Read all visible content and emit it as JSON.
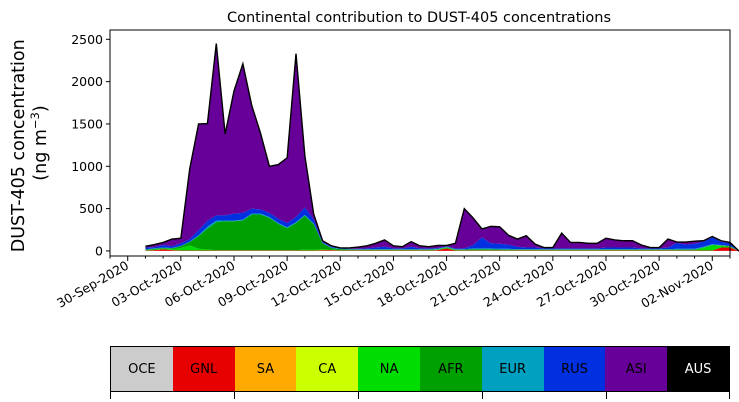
{
  "chart_data": {
    "type": "area",
    "title": "Continental contribution to DUST-405 concentrations",
    "ylabel_line1": "DUST-405 concentration",
    "ylabel_line2": "(ng m",
    "ylabel_sup": "−3",
    "ylabel_close": ")",
    "xlabel": "",
    "ylim": [
      -60,
      2610
    ],
    "y_ticks": [
      0,
      500,
      1000,
      1500,
      2000,
      2500
    ],
    "x_tick_labels": [
      "30-Sep-2020",
      "03-Oct-2020",
      "06-Oct-2020",
      "09-Oct-2020",
      "12-Oct-2020",
      "15-Oct-2020",
      "18-Oct-2020",
      "21-Oct-2020",
      "24-Oct-2020",
      "27-Oct-2020",
      "30-Oct-2020",
      "02-Nov-2020"
    ],
    "x_tick_days": [
      0,
      3,
      6,
      9,
      12,
      15,
      18,
      21,
      24,
      27,
      30,
      33
    ],
    "xlim_days": [
      -1,
      34
    ],
    "x_day0": "30-Sep-2020",
    "x_days": [
      1,
      1.5,
      2,
      2.5,
      3,
      3.5,
      4,
      4.5,
      5,
      5.5,
      6,
      6.5,
      7,
      7.5,
      8,
      8.5,
      9,
      9.5,
      10,
      10.5,
      11,
      11.5,
      12,
      12.5,
      13,
      13.5,
      14,
      14.5,
      15,
      15.5,
      16,
      16.5,
      17,
      17.5,
      18,
      18.5,
      19,
      19.5,
      20,
      20.5,
      21,
      21.5,
      22,
      22.5,
      23,
      23.5,
      24,
      24.5,
      25,
      25.5,
      26,
      26.5,
      27,
      27.5,
      28,
      28.5,
      29,
      29.5,
      30,
      30.5,
      31,
      31.5,
      32,
      32.5,
      33,
      33.5,
      34,
      34.5,
      35
    ],
    "stack_order": [
      "OCE",
      "GNL",
      "SA",
      "CA",
      "NA",
      "AFR",
      "EUR",
      "RUS",
      "ASI",
      "AUS"
    ],
    "series": [
      {
        "name": "OCE",
        "color": "#cccccc",
        "values": [
          0,
          0,
          0,
          0,
          0,
          0,
          0,
          0,
          0,
          0,
          0,
          0,
          0,
          0,
          0,
          0,
          0,
          0,
          0,
          0,
          0,
          0,
          0,
          0,
          0,
          0,
          0,
          0,
          0,
          0,
          0,
          0,
          0,
          0,
          0,
          0,
          0,
          0,
          0,
          0,
          0,
          0,
          0,
          0,
          0,
          0,
          0,
          0,
          0,
          0,
          0,
          0,
          0,
          0,
          0,
          0,
          0,
          0,
          0,
          0,
          0,
          0,
          0,
          0,
          0,
          0,
          0,
          0,
          0
        ]
      },
      {
        "name": "GNL",
        "color": "#e60000",
        "values": [
          5,
          10,
          20,
          10,
          5,
          5,
          5,
          5,
          5,
          5,
          5,
          5,
          5,
          5,
          5,
          5,
          5,
          5,
          5,
          5,
          10,
          10,
          5,
          5,
          5,
          5,
          5,
          5,
          5,
          5,
          5,
          5,
          5,
          10,
          30,
          5,
          5,
          5,
          5,
          5,
          5,
          5,
          5,
          5,
          5,
          5,
          5,
          5,
          5,
          5,
          5,
          5,
          5,
          5,
          5,
          5,
          5,
          5,
          5,
          5,
          5,
          5,
          5,
          5,
          5,
          40,
          40,
          0,
          0
        ]
      },
      {
        "name": "SA",
        "color": "#ffaa00",
        "values": [
          0,
          0,
          0,
          0,
          0,
          0,
          0,
          0,
          0,
          0,
          0,
          0,
          0,
          0,
          0,
          0,
          0,
          0,
          0,
          0,
          0,
          0,
          0,
          0,
          0,
          0,
          0,
          0,
          0,
          0,
          0,
          0,
          0,
          0,
          0,
          0,
          0,
          0,
          0,
          0,
          0,
          0,
          0,
          0,
          0,
          0,
          0,
          0,
          0,
          0,
          0,
          0,
          0,
          0,
          0,
          0,
          0,
          0,
          0,
          0,
          0,
          0,
          0,
          0,
          0,
          0,
          0,
          0,
          0
        ]
      },
      {
        "name": "CA",
        "color": "#ccff00",
        "values": [
          0,
          0,
          0,
          0,
          0,
          0,
          0,
          0,
          0,
          0,
          0,
          0,
          0,
          0,
          0,
          0,
          0,
          0,
          0,
          0,
          0,
          0,
          0,
          0,
          0,
          0,
          0,
          0,
          0,
          0,
          0,
          0,
          0,
          0,
          0,
          0,
          0,
          0,
          0,
          0,
          0,
          0,
          0,
          0,
          0,
          0,
          0,
          0,
          0,
          0,
          0,
          0,
          0,
          0,
          0,
          0,
          0,
          0,
          0,
          0,
          0,
          0,
          0,
          0,
          0,
          0,
          0,
          0,
          0
        ]
      },
      {
        "name": "NA",
        "color": "#00dd00",
        "values": [
          5,
          5,
          5,
          10,
          30,
          60,
          20,
          10,
          5,
          5,
          5,
          5,
          5,
          5,
          5,
          5,
          5,
          5,
          10,
          10,
          10,
          5,
          5,
          5,
          5,
          5,
          5,
          5,
          5,
          5,
          5,
          5,
          5,
          5,
          10,
          5,
          5,
          5,
          5,
          5,
          5,
          5,
          5,
          5,
          5,
          5,
          5,
          5,
          5,
          5,
          5,
          5,
          5,
          5,
          5,
          5,
          5,
          5,
          5,
          5,
          5,
          5,
          5,
          30,
          60,
          20,
          10,
          0,
          0
        ]
      },
      {
        "name": "AFR",
        "color": "#00a000",
        "values": [
          5,
          10,
          10,
          10,
          20,
          40,
          150,
          250,
          330,
          340,
          340,
          350,
          420,
          420,
          380,
          310,
          260,
          320,
          400,
          300,
          70,
          20,
          10,
          5,
          5,
          5,
          5,
          5,
          5,
          5,
          5,
          5,
          5,
          5,
          5,
          5,
          5,
          10,
          10,
          10,
          5,
          5,
          5,
          5,
          5,
          5,
          5,
          5,
          5,
          5,
          5,
          5,
          5,
          5,
          5,
          5,
          5,
          5,
          5,
          5,
          5,
          5,
          5,
          5,
          5,
          5,
          5,
          0,
          0
        ]
      },
      {
        "name": "EUR",
        "color": "#00a0c0",
        "values": [
          5,
          5,
          5,
          5,
          5,
          5,
          10,
          20,
          20,
          10,
          10,
          10,
          10,
          10,
          10,
          10,
          10,
          10,
          10,
          10,
          5,
          5,
          5,
          5,
          5,
          5,
          5,
          5,
          5,
          5,
          5,
          5,
          5,
          5,
          5,
          5,
          5,
          10,
          10,
          10,
          10,
          10,
          5,
          5,
          5,
          5,
          5,
          5,
          5,
          5,
          5,
          5,
          5,
          5,
          5,
          5,
          5,
          5,
          5,
          5,
          10,
          10,
          10,
          10,
          10,
          5,
          5,
          0,
          0
        ]
      },
      {
        "name": "RUS",
        "color": "#0030e0",
        "values": [
          20,
          15,
          30,
          20,
          30,
          30,
          60,
          70,
          60,
          60,
          80,
          80,
          60,
          50,
          50,
          50,
          50,
          60,
          90,
          50,
          10,
          10,
          5,
          5,
          5,
          10,
          20,
          30,
          10,
          10,
          30,
          10,
          10,
          10,
          5,
          10,
          10,
          40,
          130,
          60,
          60,
          50,
          30,
          20,
          20,
          10,
          10,
          10,
          10,
          10,
          10,
          10,
          20,
          20,
          20,
          20,
          10,
          10,
          10,
          20,
          70,
          50,
          60,
          60,
          80,
          40,
          30,
          0,
          0
        ]
      },
      {
        "name": "ASI",
        "color": "#660099",
        "values": [
          15,
          30,
          30,
          85,
          60,
          830,
          1255,
          1150,
          2030,
          960,
          1450,
          1760,
          1220,
          900,
          550,
          640,
          770,
          1930,
          610,
          60,
          15,
          10,
          5,
          10,
          20,
          30,
          50,
          80,
          30,
          20,
          60,
          30,
          20,
          30,
          10,
          60,
          470,
          320,
          100,
          200,
          200,
          110,
          90,
          140,
          40,
          10,
          10,
          180,
          70,
          70,
          60,
          60,
          110,
          90,
          80,
          80,
          40,
          10,
          10,
          100,
          10,
          30,
          30,
          10,
          10,
          10,
          10,
          0,
          0
        ]
      },
      {
        "name": "AUS",
        "color": "#000000",
        "values": [
          0,
          0,
          0,
          0,
          0,
          0,
          0,
          0,
          0,
          0,
          0,
          0,
          0,
          0,
          0,
          0,
          0,
          0,
          0,
          0,
          0,
          0,
          0,
          0,
          0,
          0,
          0,
          0,
          0,
          0,
          0,
          0,
          0,
          0,
          0,
          0,
          0,
          0,
          0,
          0,
          0,
          0,
          0,
          0,
          0,
          0,
          0,
          0,
          0,
          0,
          0,
          0,
          0,
          0,
          0,
          0,
          0,
          0,
          0,
          0,
          0,
          0,
          0,
          0,
          0,
          0,
          0,
          0,
          0
        ]
      }
    ],
    "legend_position": "below",
    "legend": [
      {
        "label": "OCE",
        "color": "#cccccc",
        "text_color": "#000000"
      },
      {
        "label": "GNL",
        "color": "#e60000",
        "text_color": "#000000"
      },
      {
        "label": "SA",
        "color": "#ffaa00",
        "text_color": "#000000"
      },
      {
        "label": "CA",
        "color": "#ccff00",
        "text_color": "#000000"
      },
      {
        "label": "NA",
        "color": "#00dd00",
        "text_color": "#000000"
      },
      {
        "label": "AFR",
        "color": "#00a000",
        "text_color": "#000000"
      },
      {
        "label": "EUR",
        "color": "#00a0c0",
        "text_color": "#000000"
      },
      {
        "label": "RUS",
        "color": "#0030e0",
        "text_color": "#000000"
      },
      {
        "label": "ASI",
        "color": "#660099",
        "text_color": "#000000"
      },
      {
        "label": "AUS",
        "color": "#000000",
        "text_color": "#ffffff"
      }
    ],
    "grid": false
  }
}
